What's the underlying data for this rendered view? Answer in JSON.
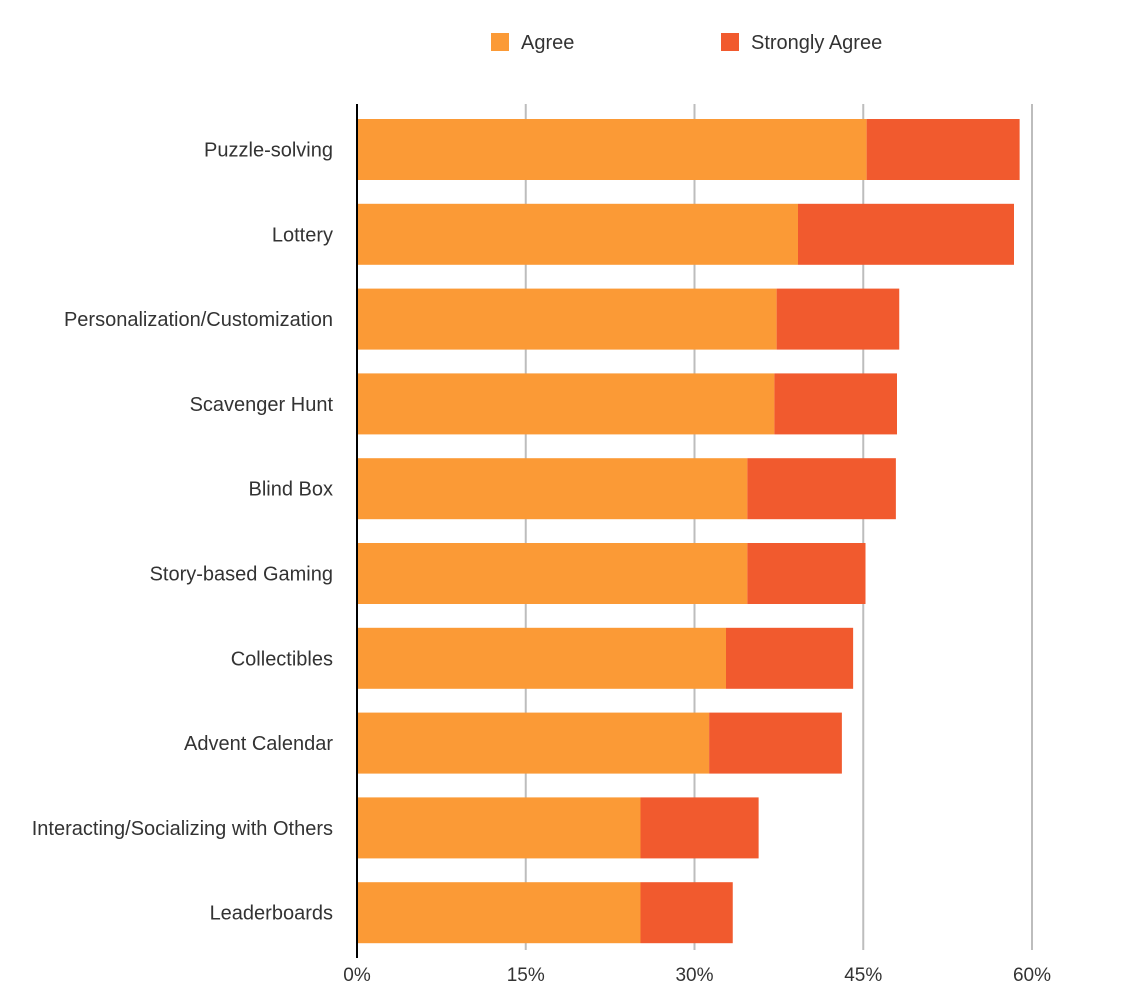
{
  "chart_data": {
    "type": "bar",
    "orientation": "horizontal",
    "stacked": true,
    "categories": [
      "Puzzle-solving",
      "Lottery",
      "Personalization/Customization",
      "Scavenger Hunt",
      "Blind Box",
      "Story-based Gaming",
      "Collectibles",
      "Advent Calendar",
      "Interacting/Socializing with Others",
      "Leaderboards"
    ],
    "series": [
      {
        "name": "Agree",
        "color": "#FB9A36",
        "values": [
          45.3,
          39.2,
          37.3,
          37.1,
          34.7,
          34.7,
          32.8,
          31.3,
          25.2,
          25.2
        ]
      },
      {
        "name": "Strongly Agree",
        "color": "#F15A2E",
        "values": [
          13.6,
          19.2,
          10.9,
          10.9,
          13.2,
          10.5,
          11.3,
          11.8,
          10.5,
          8.2
        ]
      }
    ],
    "xlim": [
      0,
      60
    ],
    "xticks": [
      0,
      15,
      30,
      45,
      60
    ],
    "xtick_labels": [
      "0%",
      "15%",
      "30%",
      "45%",
      "60%"
    ],
    "grid": "vertical",
    "legend_position": "top",
    "title": "",
    "xlabel": "",
    "ylabel": ""
  }
}
